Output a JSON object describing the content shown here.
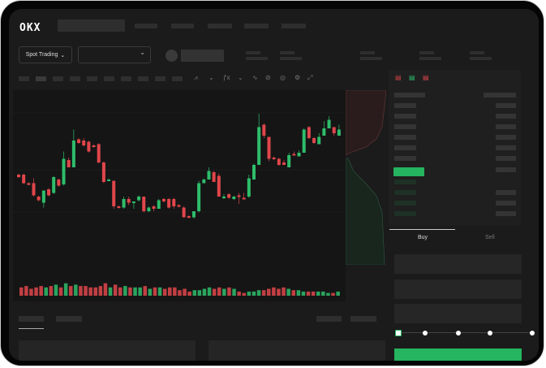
{
  "header": {
    "logo": "OKX"
  },
  "toolbar": {
    "spot_trading_label": "Spot Trading",
    "icons": [
      "indicator-icon",
      "chevron-down-icon",
      "fx-icon",
      "chevron-down-icon",
      "line-icon",
      "pencil-icon",
      "target-icon",
      "settings-icon",
      "expand-icon"
    ]
  },
  "order_form": {
    "tabs": [
      "Buy",
      "Sell"
    ],
    "active_tab": "Buy",
    "slider_percent": 0,
    "accent_color": "#25b45f"
  },
  "colors": {
    "up": "#2ebd6b",
    "down": "#e0464b",
    "background": "#1b1b1b"
  },
  "chart_data": {
    "type": "candlestick",
    "candles": [
      [
        44,
        42
      ],
      [
        44,
        37
      ],
      [
        37,
        36
      ],
      [
        37,
        27,
        41,
        26
      ],
      [
        26,
        23
      ],
      [
        21,
        31,
        31,
        17
      ],
      [
        32,
        27
      ],
      [
        29,
        42
      ],
      [
        40,
        35
      ],
      [
        36,
        57,
        63,
        35
      ],
      [
        56,
        50,
        58,
        50
      ],
      [
        50,
        72,
        81,
        50
      ],
      [
        73,
        70
      ],
      [
        72,
        68,
        74,
        67
      ],
      [
        71,
        63
      ],
      [
        68,
        67
      ],
      [
        69,
        54
      ],
      [
        54,
        38
      ],
      [
        40,
        40
      ],
      [
        39,
        18,
        39,
        16
      ],
      [
        18,
        17
      ],
      [
        17,
        24,
        26,
        16
      ],
      [
        24,
        21,
        26,
        19
      ],
      [
        21,
        22,
        22,
        16
      ],
      [
        23,
        26,
        27,
        22
      ],
      [
        26,
        14,
        26,
        13
      ],
      [
        14,
        17
      ],
      [
        18,
        16,
        19,
        14
      ],
      [
        16,
        23,
        24,
        16
      ],
      [
        24,
        22
      ],
      [
        24,
        17
      ],
      [
        24,
        18,
        25,
        16
      ],
      [
        19,
        18
      ],
      [
        17,
        9,
        18,
        9
      ],
      [
        10,
        9
      ],
      [
        9,
        14,
        14,
        8
      ],
      [
        14,
        37,
        39,
        13
      ],
      [
        37,
        40,
        41,
        37
      ],
      [
        40,
        47,
        50,
        40
      ],
      [
        46,
        38,
        47,
        38
      ],
      [
        43,
        26,
        45,
        26
      ],
      [
        25,
        26,
        28,
        24
      ],
      [
        28,
        25
      ],
      [
        24,
        26
      ],
      [
        27,
        26,
        29,
        20
      ],
      [
        25,
        24,
        29,
        24
      ],
      [
        26,
        41,
        44,
        25
      ],
      [
        40,
        52,
        53,
        40
      ],
      [
        52,
        83,
        94,
        52
      ],
      [
        85,
        76,
        86,
        74
      ],
      [
        75,
        57,
        75,
        55
      ],
      [
        58,
        57,
        59,
        56
      ],
      [
        57,
        52
      ],
      [
        54,
        52,
        56,
        52
      ],
      [
        50,
        60,
        62,
        50
      ],
      [
        61,
        60,
        63,
        60
      ],
      [
        59,
        62,
        64,
        59
      ],
      [
        62,
        81,
        82,
        62
      ],
      [
        83,
        74
      ],
      [
        74,
        70
      ],
      [
        69,
        75,
        78,
        69
      ],
      [
        76,
        82,
        88,
        76
      ],
      [
        82,
        89,
        92,
        82
      ],
      [
        83,
        78,
        83,
        76
      ],
      [
        76,
        81,
        85,
        76
      ]
    ],
    "volumes": [
      6,
      7,
      5,
      6,
      7,
      6,
      7,
      8,
      6,
      9,
      7,
      8,
      7,
      7,
      6,
      6,
      7,
      9,
      6,
      8,
      6,
      7,
      6,
      6,
      6,
      7,
      5,
      6,
      6,
      5,
      6,
      6,
      4,
      5,
      3,
      4,
      4,
      5,
      6,
      5,
      6,
      5,
      6,
      5,
      3,
      2,
      3,
      3,
      4,
      4,
      5,
      6,
      5,
      6,
      5,
      4,
      4,
      3,
      3,
      3,
      3,
      3,
      2,
      2,
      3
    ]
  }
}
